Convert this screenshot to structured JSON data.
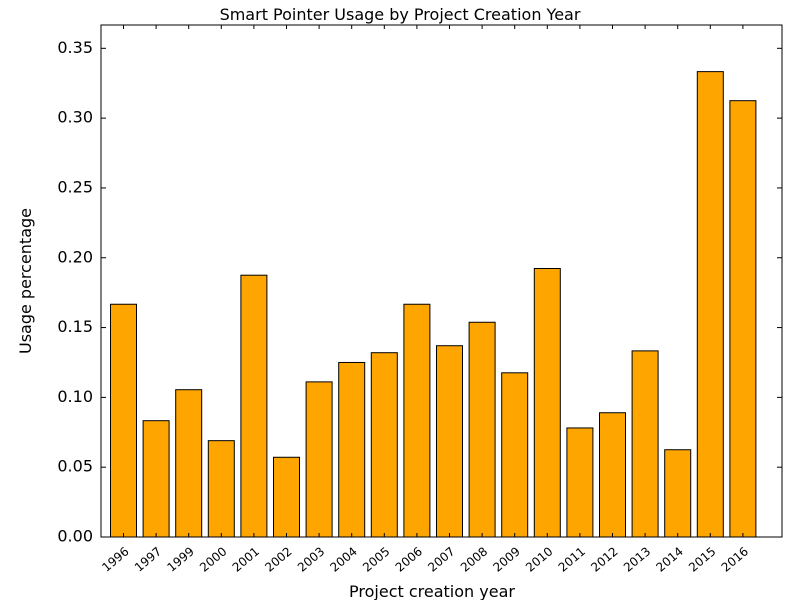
{
  "chart_data": {
    "type": "bar",
    "title": "Smart Pointer Usage by Project Creation Year",
    "xlabel": "Project creation year",
    "ylabel": "Usage percentage",
    "categories": [
      "1996",
      "1997",
      "1999",
      "2000",
      "2001",
      "2002",
      "2003",
      "2004",
      "2005",
      "2006",
      "2007",
      "2008",
      "2009",
      "2010",
      "2011",
      "2012",
      "2013",
      "2014",
      "2015",
      "2016"
    ],
    "values": [
      0.1667,
      0.0833,
      0.1055,
      0.069,
      0.1875,
      0.0571,
      0.1111,
      0.125,
      0.132,
      0.1667,
      0.137,
      0.1538,
      0.1176,
      0.1923,
      0.0781,
      0.089,
      0.1333,
      0.0625,
      0.3333,
      0.3125
    ],
    "ylim": [
      0,
      0.3667
    ],
    "yticks": [
      "0.00",
      "0.05",
      "0.10",
      "0.15",
      "0.20",
      "0.25",
      "0.30",
      "0.35"
    ],
    "grid": false,
    "legend": "none",
    "bar_color": "#ffa500",
    "edge_color": "#000000"
  }
}
